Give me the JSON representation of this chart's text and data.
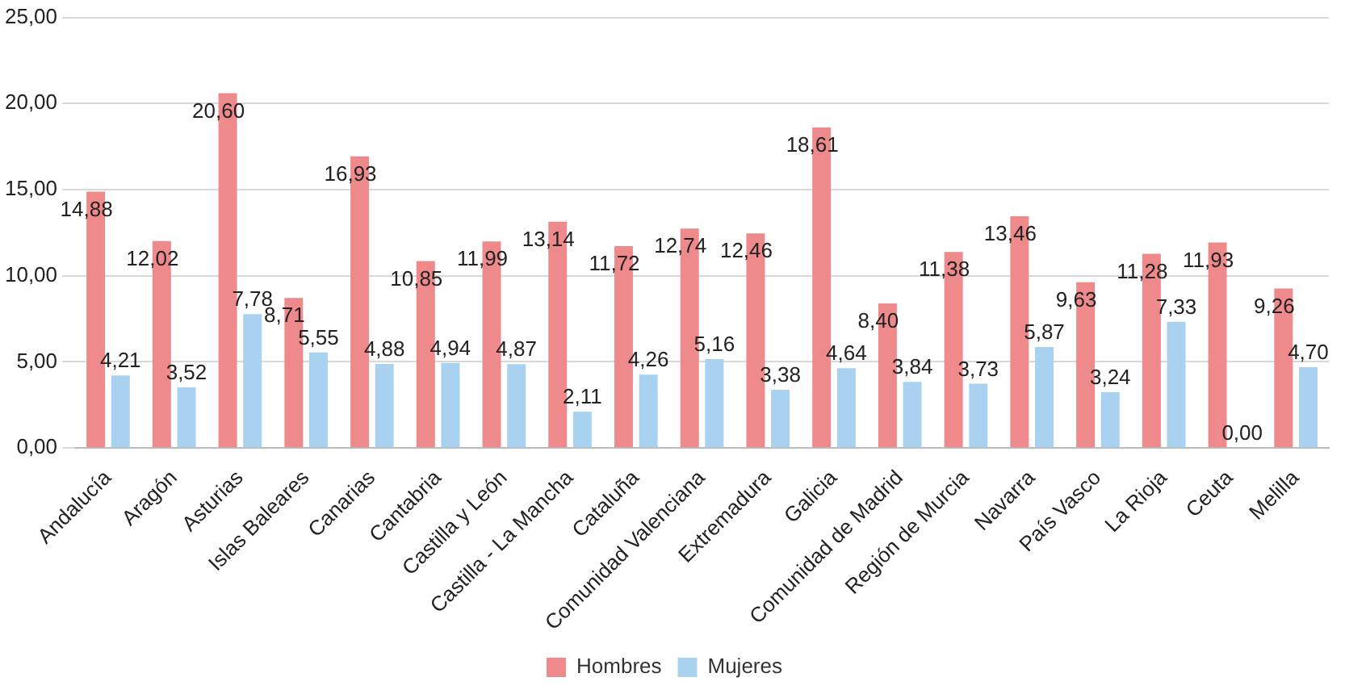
{
  "chart_data": {
    "type": "bar",
    "categories": [
      "Andalucía",
      "Aragón",
      "Asturias",
      "Islas Baleares",
      "Canarias",
      "Cantabria",
      "Castilla y León",
      "Castilla - La Mancha",
      "Cataluña",
      "Comunidad Valenciana",
      "Extremadura",
      "Galicia",
      "Comunidad de Madrid",
      "Región de Murcia",
      "Navarra",
      "País Vasco",
      "La Rioja",
      "Ceuta",
      "Melilla"
    ],
    "series": [
      {
        "name": "Hombres",
        "color": "#ee8a8c",
        "values": [
          14.88,
          12.02,
          20.6,
          8.71,
          16.93,
          10.85,
          11.99,
          13.14,
          11.72,
          12.74,
          12.46,
          18.61,
          8.4,
          11.38,
          13.46,
          9.63,
          11.28,
          11.93,
          9.26
        ],
        "value_labels": [
          "14,88",
          "12,02",
          "20,60",
          "8,71",
          "16,93",
          "10,85",
          "11,99",
          "13,14",
          "11,72",
          "12,74",
          "12,46",
          "18,61",
          "8,40",
          "11,38",
          "13,46",
          "9,63",
          "11,28",
          "11,93",
          "9,26"
        ]
      },
      {
        "name": "Mujeres",
        "color": "#a8d2ef",
        "values": [
          4.21,
          3.52,
          7.78,
          5.55,
          4.88,
          4.94,
          4.87,
          2.11,
          4.26,
          5.16,
          3.38,
          4.64,
          3.84,
          3.73,
          5.87,
          3.24,
          7.33,
          0.0,
          4.7
        ],
        "value_labels": [
          "4,21",
          "3,52",
          "7,78",
          "5,55",
          "4,88",
          "4,94",
          "4,87",
          "2,11",
          "4,26",
          "5,16",
          "3,38",
          "4,64",
          "3,84",
          "3,73",
          "5,87",
          "3,24",
          "7,33",
          "0,00",
          "4,70"
        ]
      }
    ],
    "ylim": [
      0,
      25
    ],
    "yticks": [
      {
        "value": 0,
        "label": "0,00"
      },
      {
        "value": 5,
        "label": "5,00"
      },
      {
        "value": 10,
        "label": "10,00"
      },
      {
        "value": 15,
        "label": "15,00"
      },
      {
        "value": 20,
        "label": "20,00"
      },
      {
        "value": 25,
        "label": "25,00"
      }
    ],
    "grid": "y",
    "legend": "bottom"
  }
}
